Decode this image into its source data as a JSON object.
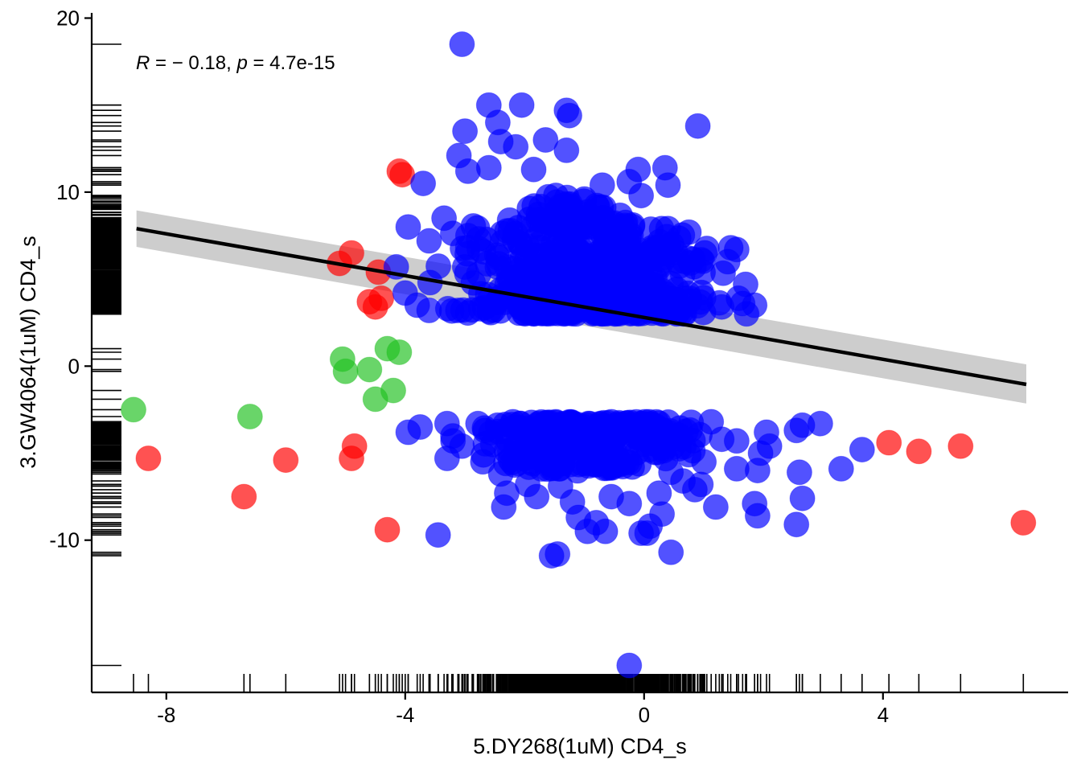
{
  "chart_data": {
    "type": "scatter",
    "title": "",
    "xlabel": "5.DY268(1uM) CD4_s",
    "ylabel": "3.GW4064(1uM) CD4_s",
    "xlim": [
      -9.25,
      7.1
    ],
    "ylim": [
      -18.75,
      20.3
    ],
    "x_ticks": [
      -8,
      -4,
      0,
      4
    ],
    "y_ticks": [
      20,
      10,
      0,
      -10
    ],
    "x_tick_labels": [
      "-8",
      "-4",
      "0",
      "4"
    ],
    "y_tick_labels": [
      "20",
      "10",
      "0",
      "-10"
    ],
    "grid": false,
    "legend": "none",
    "annotation": {
      "r_symbol": "R",
      "r_text": " = − 0.18, ",
      "p_symbol": "p",
      "p_text": " = 4.7e-15"
    },
    "colors": {
      "main": "#0000ff",
      "outlier": "#ff0000",
      "mid": "#22c122",
      "fit": "#000000",
      "band": "#c8c8c8"
    },
    "regression": {
      "x": [
        -8.5,
        6.4
      ],
      "y": [
        7.9,
        -1.05
      ],
      "ci_lower": [
        6.85,
        -2.15
      ],
      "ci_upper": [
        8.95,
        0.1
      ]
    },
    "series": [
      {
        "color": "#ff0000",
        "points": [
          [
            -8.3,
            -5.3
          ],
          [
            -6.7,
            -7.5
          ],
          [
            -6.0,
            -5.4
          ],
          [
            -5.1,
            5.9
          ],
          [
            -4.9,
            6.5
          ],
          [
            -4.85,
            -4.6
          ],
          [
            -4.9,
            -5.3
          ],
          [
            -4.6,
            3.7
          ],
          [
            -4.5,
            3.4
          ],
          [
            -4.4,
            3.9
          ],
          [
            -4.45,
            5.4
          ],
          [
            -4.3,
            -9.4
          ],
          [
            -4.1,
            11.2
          ],
          [
            -4.05,
            11.0
          ],
          [
            4.1,
            -4.4
          ],
          [
            4.6,
            -4.9
          ],
          [
            5.3,
            -4.6
          ],
          [
            6.35,
            -9.0
          ]
        ]
      },
      {
        "color": "#22c122",
        "points": [
          [
            -8.55,
            -2.5
          ],
          [
            -6.6,
            -2.9
          ],
          [
            -5.05,
            0.4
          ],
          [
            -5.0,
            -0.3
          ],
          [
            -4.6,
            -0.2
          ],
          [
            -4.5,
            -1.9
          ],
          [
            -4.3,
            1.0
          ],
          [
            -4.1,
            0.8
          ],
          [
            -4.2,
            -1.4
          ]
        ]
      },
      {
        "color": "#0000ff",
        "points": [
          [
            -3.05,
            18.5
          ],
          [
            -2.6,
            15.0
          ],
          [
            -2.05,
            15.0
          ],
          [
            -2.45,
            14.0
          ],
          [
            -3.0,
            13.5
          ],
          [
            -2.4,
            12.9
          ],
          [
            -1.65,
            13.0
          ],
          [
            -1.3,
            14.7
          ],
          [
            -1.25,
            14.4
          ],
          [
            0.9,
            13.8
          ],
          [
            -3.1,
            12.1
          ],
          [
            -2.15,
            12.6
          ],
          [
            -1.3,
            12.4
          ],
          [
            -2.95,
            11.2
          ],
          [
            -2.6,
            11.4
          ],
          [
            -1.85,
            11.3
          ],
          [
            -0.1,
            11.3
          ],
          [
            0.35,
            11.4
          ],
          [
            0.4,
            10.4
          ],
          [
            -0.25,
            10.6
          ],
          [
            -0.7,
            10.4
          ],
          [
            -3.7,
            10.5
          ],
          [
            -1.0,
            9.6
          ],
          [
            -0.05,
            9.8
          ],
          [
            -3.95,
            8.0
          ],
          [
            -3.35,
            8.5
          ],
          [
            -2.95,
            7.5
          ],
          [
            -0.35,
            7.8
          ],
          [
            0.4,
            7.9
          ],
          [
            0.75,
            7.7
          ],
          [
            1.45,
            6.8
          ],
          [
            1.55,
            6.7
          ],
          [
            1.4,
            6.0
          ],
          [
            1.7,
            4.7
          ],
          [
            1.65,
            3.6
          ],
          [
            1.3,
            3.4
          ],
          [
            1.85,
            3.5
          ],
          [
            -3.6,
            7.2
          ],
          [
            -4.15,
            5.7
          ],
          [
            -4.0,
            4.2
          ],
          [
            -3.8,
            3.5
          ],
          [
            -3.6,
            3.2
          ],
          [
            -3.95,
            -3.8
          ],
          [
            -3.75,
            -3.5
          ],
          [
            -3.3,
            -3.3
          ],
          [
            -3.2,
            -4.3
          ],
          [
            -3.05,
            -4.6
          ],
          [
            -3.3,
            -5.3
          ],
          [
            -2.7,
            -5.5
          ],
          [
            -2.4,
            -6.2
          ],
          [
            -2.3,
            -7.3
          ],
          [
            -2.35,
            -8.1
          ],
          [
            -1.95,
            -6.8
          ],
          [
            -1.8,
            -7.5
          ],
          [
            -1.4,
            -6.9
          ],
          [
            -1.2,
            -7.8
          ],
          [
            -1.1,
            -8.7
          ],
          [
            -0.95,
            -9.5
          ],
          [
            -0.65,
            -9.5
          ],
          [
            -0.55,
            -7.5
          ],
          [
            -0.25,
            -7.9
          ],
          [
            0.05,
            -9.6
          ],
          [
            0.1,
            -9.2
          ],
          [
            0.3,
            -8.5
          ],
          [
            0.25,
            -7.3
          ],
          [
            0.45,
            -6.1
          ],
          [
            0.65,
            -6.6
          ],
          [
            0.95,
            -6.8
          ],
          [
            0.85,
            -7.1
          ],
          [
            1.2,
            -8.1
          ],
          [
            1.55,
            -5.9
          ],
          [
            1.85,
            -7.9
          ],
          [
            1.9,
            -8.6
          ],
          [
            1.9,
            -6.0
          ],
          [
            1.95,
            -5.0
          ],
          [
            2.1,
            -4.6
          ],
          [
            2.05,
            -3.8
          ],
          [
            2.55,
            -3.7
          ],
          [
            2.65,
            -3.4
          ],
          [
            2.95,
            -3.3
          ],
          [
            2.6,
            -6.1
          ],
          [
            2.65,
            -7.6
          ],
          [
            2.55,
            -9.1
          ],
          [
            3.3,
            -5.9
          ],
          [
            3.65,
            -4.8
          ],
          [
            -3.45,
            -9.7
          ],
          [
            -1.55,
            -10.9
          ],
          [
            -1.45,
            -10.8
          ],
          [
            0.45,
            -10.7
          ],
          [
            -0.25,
            -17.2
          ],
          [
            -0.05,
            -9.6
          ],
          [
            -0.8,
            -9.0
          ],
          [
            -0.5,
            -5.2
          ],
          [
            -0.2,
            -5.8
          ],
          [
            1.3,
            -4.2
          ],
          [
            1.55,
            -4.3
          ],
          [
            1.0,
            -5.5
          ]
        ]
      }
    ],
    "dense_clusters": [
      {
        "x_range": [
          -3.9,
          1.95
        ],
        "y_range": [
          3.0,
          10.1
        ],
        "density": "dense"
      },
      {
        "x_range": [
          -3.7,
          1.55
        ],
        "y_range": [
          -7.0,
          -3.2
        ],
        "density": "dense"
      }
    ],
    "x_rug_note": "rug marks along the x axis at x positions of all points",
    "y_rug_note": "rug marks along the y axis at y positions of all points"
  }
}
